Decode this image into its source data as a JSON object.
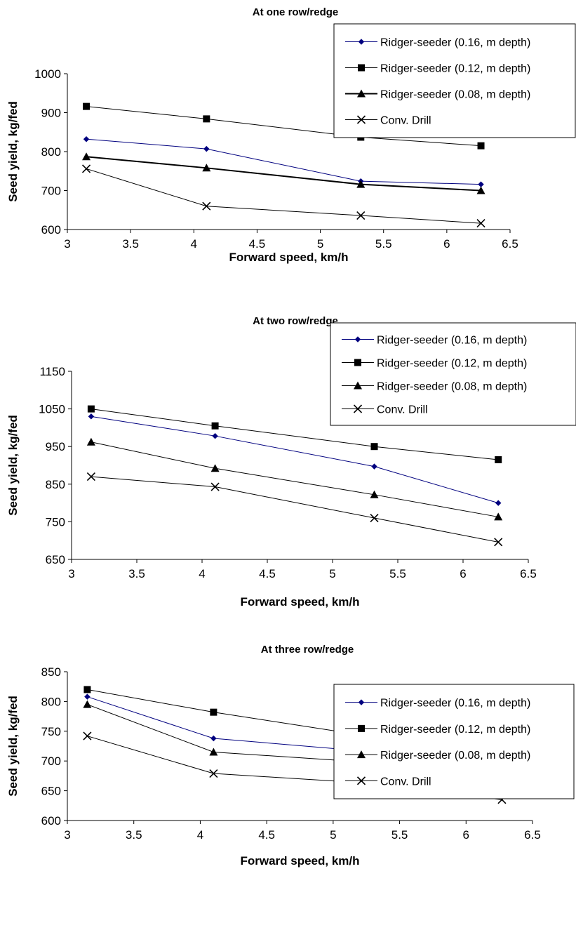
{
  "chart_data": [
    {
      "type": "line",
      "title": "At one row/redge",
      "xlabel": "Forward speed, km/h",
      "ylabel": "Seed yield, kg/fed",
      "xlim": [
        3,
        6.5
      ],
      "xticks": [
        3,
        3.5,
        4,
        4.5,
        5,
        5.5,
        6,
        6.5
      ],
      "xtick_labels": [
        "3",
        "3.5",
        "4",
        "4.5",
        "5",
        "5.5",
        "6",
        "6.5"
      ],
      "ylim": [
        600,
        1000
      ],
      "yticks": [
        600,
        700,
        800,
        900,
        1000
      ],
      "ytick_labels": [
        "600",
        "700",
        "800",
        "900",
        "1000"
      ],
      "grid": false,
      "legend_position": "top-right",
      "x": [
        3.15,
        4.1,
        5.32,
        6.27
      ],
      "series": [
        {
          "name": "Ridger-seeder (0.16, m depth)",
          "marker": "diamond",
          "color": "#00007f",
          "values": [
            832,
            807,
            724,
            716
          ]
        },
        {
          "name": "Ridger-seeder (0.12, m depth)",
          "marker": "square",
          "color": "#000000",
          "values": [
            916,
            884,
            837,
            815
          ]
        },
        {
          "name": "Ridger-seeder (0.08, m  depth)",
          "marker": "triangle",
          "color": "#000000",
          "values": [
            787,
            758,
            716,
            700
          ]
        },
        {
          "name": "Conv. Drill",
          "marker": "x",
          "color": "#000000",
          "values": [
            756,
            660,
            636,
            616
          ]
        }
      ]
    },
    {
      "type": "line",
      "title": "At two row/redge",
      "xlabel": "Forward speed, km/h",
      "ylabel": "Seed yield, kg/fed",
      "xlim": [
        3,
        6.5
      ],
      "xticks": [
        3,
        3.5,
        4,
        4.5,
        5,
        5.5,
        6,
        6.5
      ],
      "xtick_labels": [
        "3",
        "3.5",
        "4",
        "4.5",
        "5",
        "5.5",
        "6",
        "6.5"
      ],
      "ylim": [
        650,
        1150
      ],
      "yticks": [
        650,
        750,
        850,
        950,
        1050,
        1150
      ],
      "ytick_labels": [
        "650",
        "750",
        "850",
        "950",
        "1050",
        "1150"
      ],
      "grid": false,
      "legend_position": "top-right",
      "x": [
        3.15,
        4.1,
        5.32,
        6.27
      ],
      "series": [
        {
          "name": "Ridger-seeder (0.16, m depth)",
          "marker": "diamond",
          "color": "#00007f",
          "values": [
            1030,
            978,
            897,
            800
          ]
        },
        {
          "name": "Ridger-seeder (0.12, m depth)",
          "marker": "square",
          "color": "#000000",
          "values": [
            1050,
            1005,
            950,
            915
          ]
        },
        {
          "name": "Ridger-seeder (0.08, m  depth)",
          "marker": "triangle",
          "color": "#000000",
          "values": [
            962,
            892,
            822,
            763
          ]
        },
        {
          "name": "Conv. Drill",
          "marker": "x",
          "color": "#000000",
          "values": [
            870,
            843,
            760,
            696
          ]
        }
      ]
    },
    {
      "type": "line",
      "title": "At three row/redge",
      "xlabel": "Forward speed, km/h",
      "ylabel": "Seed yield, kg/fed",
      "xlim": [
        3,
        6.5
      ],
      "xticks": [
        3,
        3.5,
        4,
        4.5,
        5,
        5.5,
        6,
        6.5
      ],
      "xtick_labels": [
        "3",
        "3.5",
        "4",
        "4.5",
        "5",
        "5.5",
        "6",
        "6.5"
      ],
      "ylim": [
        600,
        850
      ],
      "yticks": [
        600,
        650,
        700,
        750,
        800,
        850
      ],
      "ytick_labels": [
        "600",
        "650",
        "700",
        "750",
        "800",
        "850"
      ],
      "grid": false,
      "legend_position": "top-right",
      "x": [
        3.15,
        4.1,
        5.32,
        6.27
      ],
      "series": [
        {
          "name": "Ridger-seeder (0.16, m depth)",
          "marker": "diamond",
          "color": "#00007f",
          "values": [
            808,
            738,
            715,
            675
          ]
        },
        {
          "name": "Ridger-seeder (0.12, m depth)",
          "marker": "square",
          "color": "#000000",
          "values": [
            820,
            782,
            740,
            688
          ]
        },
        {
          "name": "Ridger-seeder (0.08, m  depth)",
          "marker": "triangle",
          "color": "#000000",
          "values": [
            795,
            715,
            697,
            659
          ]
        },
        {
          "name": "Conv. Drill",
          "marker": "x",
          "color": "#000000",
          "values": [
            742,
            679,
            662,
            635
          ]
        }
      ]
    }
  ]
}
